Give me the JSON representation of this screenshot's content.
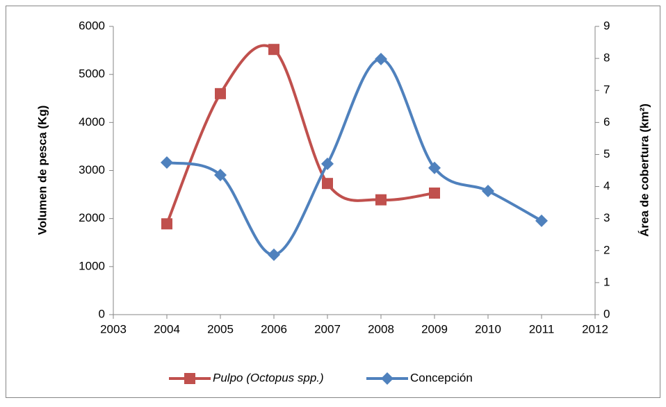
{
  "chart_data": {
    "type": "line",
    "xlabel": null,
    "ylabel": "Volumen de pesca (Kg)",
    "y2label": "Área de cobertura (km²)",
    "xlim": [
      2003,
      2012
    ],
    "xticks": [
      2003,
      2004,
      2005,
      2006,
      2007,
      2008,
      2009,
      2010,
      2011,
      2012
    ],
    "ylim": [
      0,
      6000
    ],
    "yticks": [
      0,
      1000,
      2000,
      3000,
      4000,
      5000,
      6000
    ],
    "y2lim": [
      0,
      9
    ],
    "y2ticks": [
      0,
      1,
      2,
      3,
      4,
      5,
      6,
      7,
      8,
      9
    ],
    "grid": false,
    "smooth": true,
    "legend": "bottom",
    "series": [
      {
        "name": "Pulpo (Octopus spp.)",
        "color": "#c0504d",
        "marker": "square",
        "axis": "y",
        "x": [
          2004,
          2005,
          2006,
          2007,
          2008,
          2009
        ],
        "values": [
          1890,
          4600,
          5520,
          2730,
          2390,
          2530
        ]
      },
      {
        "name": "Concepción",
        "color": "#4f81bd",
        "marker": "diamond",
        "axis": "y2",
        "x": [
          2004,
          2005,
          2006,
          2007,
          2008,
          2009,
          2010,
          2011
        ],
        "values": [
          4.75,
          4.36,
          1.87,
          4.71,
          7.98,
          4.58,
          3.86,
          2.93
        ]
      }
    ]
  }
}
